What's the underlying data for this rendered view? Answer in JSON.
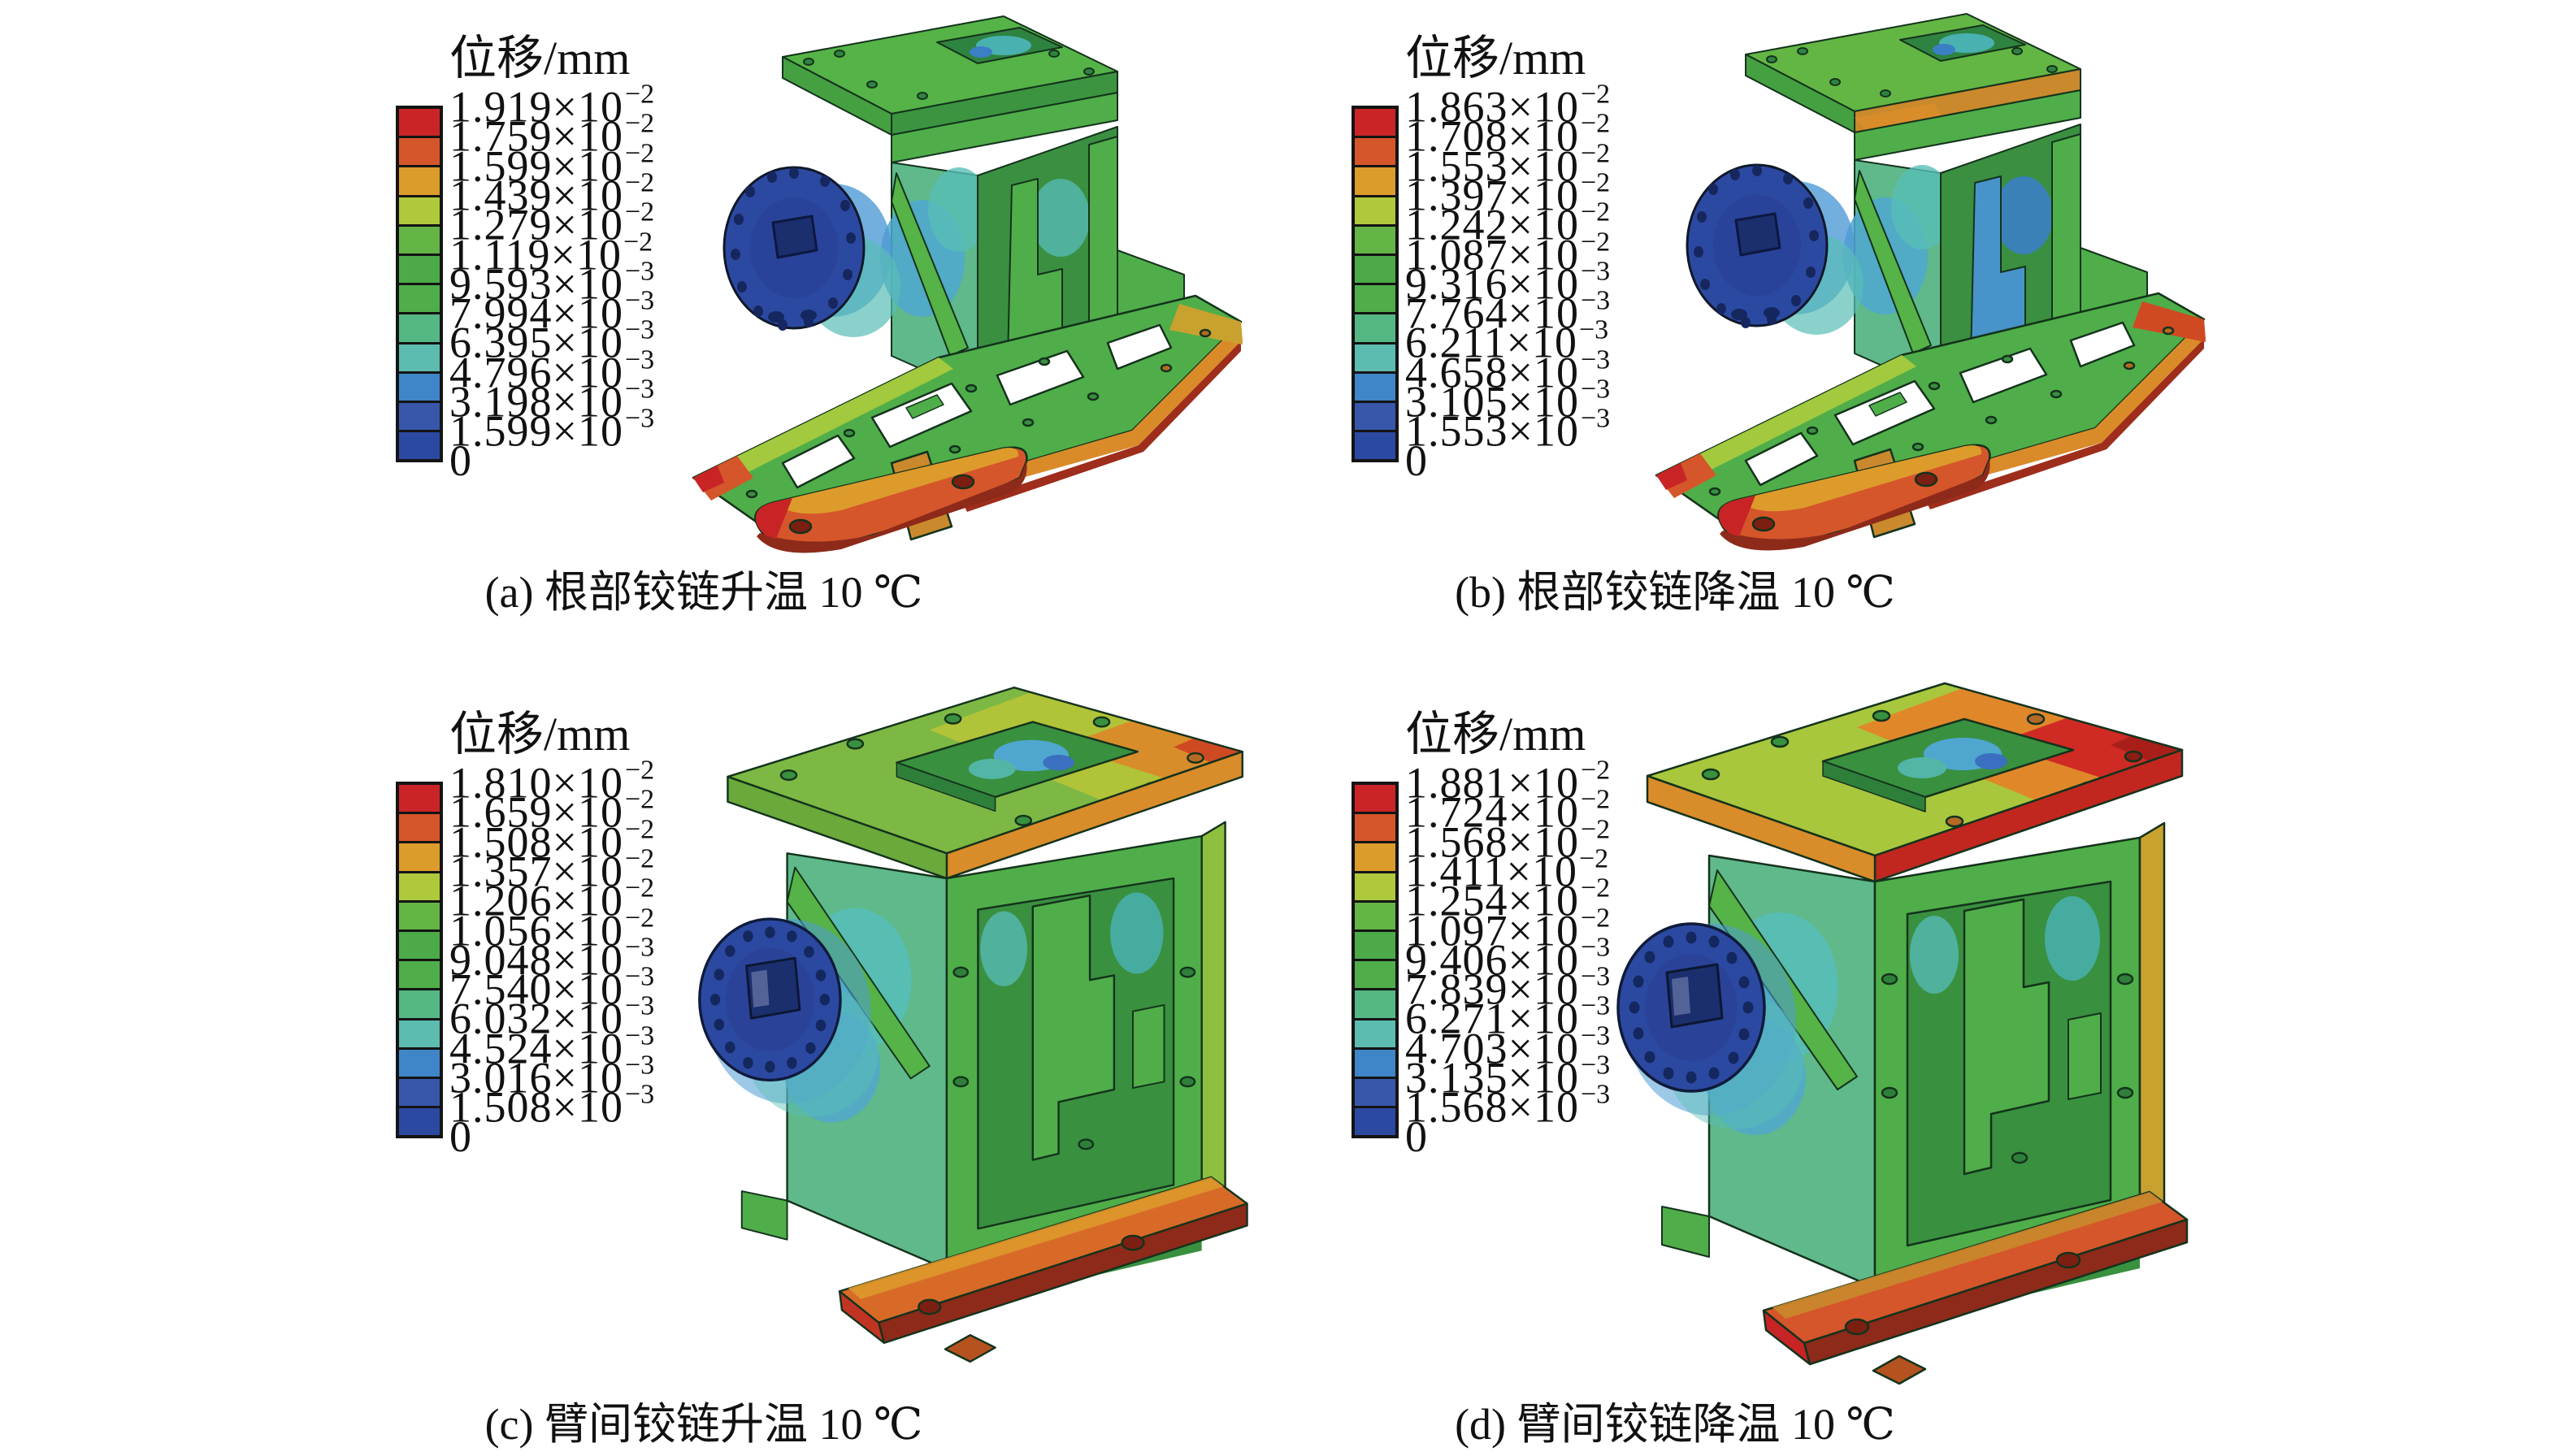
{
  "colorbar": {
    "exp_notation": "×10",
    "colors": [
      "#cb2427",
      "#d5562a",
      "#dc9c2b",
      "#aeca3c",
      "#64b446",
      "#4cab48",
      "#4fae4a",
      "#55b784",
      "#5cbcb0",
      "#3e86c8",
      "#3857ab",
      "#2c49a2"
    ]
  },
  "panels": [
    {
      "id": "a",
      "legend_title": "位移/mm",
      "caption": "(a) 根部铰链升温 10 ℃",
      "ticks": [
        {
          "m": "1.919",
          "e": "−2"
        },
        {
          "m": "1.759",
          "e": "−2"
        },
        {
          "m": "1.599",
          "e": "−2"
        },
        {
          "m": "1.439",
          "e": "−2"
        },
        {
          "m": "1.279",
          "e": "−2"
        },
        {
          "m": "1.119",
          "e": "−2"
        },
        {
          "m": "9.593",
          "e": "−3"
        },
        {
          "m": "7.994",
          "e": "−3"
        },
        {
          "m": "6.395",
          "e": "−3"
        },
        {
          "m": "4.796",
          "e": "−3"
        },
        {
          "m": "3.198",
          "e": "−3"
        },
        {
          "m": "1.599",
          "e": "−3"
        },
        {
          "m": "0",
          "e": ""
        }
      ]
    },
    {
      "id": "b",
      "legend_title": "位移/mm",
      "caption": "(b) 根部铰链降温 10 ℃",
      "ticks": [
        {
          "m": "1.863",
          "e": "−2"
        },
        {
          "m": "1.708",
          "e": "−2"
        },
        {
          "m": "1.553",
          "e": "−2"
        },
        {
          "m": "1.397",
          "e": "−2"
        },
        {
          "m": "1.242",
          "e": "−2"
        },
        {
          "m": "1.087",
          "e": "−2"
        },
        {
          "m": "9.316",
          "e": "−3"
        },
        {
          "m": "7.764",
          "e": "−3"
        },
        {
          "m": "6.211",
          "e": "−3"
        },
        {
          "m": "4.658",
          "e": "−3"
        },
        {
          "m": "3.105",
          "e": "−3"
        },
        {
          "m": "1.553",
          "e": "−3"
        },
        {
          "m": "0",
          "e": ""
        }
      ]
    },
    {
      "id": "c",
      "legend_title": "位移/mm",
      "caption": "(c) 臂间铰链升温 10 ℃",
      "ticks": [
        {
          "m": "1.810",
          "e": "−2"
        },
        {
          "m": "1.659",
          "e": "−2"
        },
        {
          "m": "1.508",
          "e": "−2"
        },
        {
          "m": "1.357",
          "e": "−2"
        },
        {
          "m": "1.206",
          "e": "−2"
        },
        {
          "m": "1.056",
          "e": "−2"
        },
        {
          "m": "9.048",
          "e": "−3"
        },
        {
          "m": "7.540",
          "e": "−3"
        },
        {
          "m": "6.032",
          "e": "−3"
        },
        {
          "m": "4.524",
          "e": "−3"
        },
        {
          "m": "3.016",
          "e": "−3"
        },
        {
          "m": "1.508",
          "e": "−3"
        },
        {
          "m": "0",
          "e": ""
        }
      ]
    },
    {
      "id": "d",
      "legend_title": "位移/mm",
      "caption": "(d) 臂间铰链降温 10 ℃",
      "ticks": [
        {
          "m": "1.881",
          "e": "−2"
        },
        {
          "m": "1.724",
          "e": "−2"
        },
        {
          "m": "1.568",
          "e": "−2"
        },
        {
          "m": "1.411",
          "e": "−2"
        },
        {
          "m": "1.254",
          "e": "−2"
        },
        {
          "m": "1.097",
          "e": "−2"
        },
        {
          "m": "9.406",
          "e": "−3"
        },
        {
          "m": "7.839",
          "e": "−3"
        },
        {
          "m": "6.271",
          "e": "−3"
        },
        {
          "m": "4.703",
          "e": "−3"
        },
        {
          "m": "3.135",
          "e": "−3"
        },
        {
          "m": "1.568",
          "e": "−3"
        },
        {
          "m": "0",
          "e": ""
        }
      ]
    }
  ],
  "chart_data": [
    {
      "type": "heatmap",
      "subtype": "FEA displacement contour (3D hinge model)",
      "panel": "a",
      "title": "(a) 根部铰链升温 10 ℃",
      "colorbar_title": "位移/mm",
      "units": "mm",
      "legend_position": "left",
      "colorbar_ticks_mm": [
        0.01919,
        0.01759,
        0.01599,
        0.01439,
        0.01279,
        0.01119,
        0.009593,
        0.007994,
        0.006395,
        0.004796,
        0.003198,
        0.001599,
        0
      ]
    },
    {
      "type": "heatmap",
      "subtype": "FEA displacement contour (3D hinge model)",
      "panel": "b",
      "title": "(b) 根部铰链降温 10 ℃",
      "colorbar_title": "位移/mm",
      "units": "mm",
      "legend_position": "left",
      "colorbar_ticks_mm": [
        0.01863,
        0.01708,
        0.01553,
        0.01397,
        0.01242,
        0.01087,
        0.009316,
        0.007764,
        0.006211,
        0.004658,
        0.003105,
        0.001553,
        0
      ]
    },
    {
      "type": "heatmap",
      "subtype": "FEA displacement contour (3D hinge model)",
      "panel": "c",
      "title": "(c) 臂间铰链升温 10 ℃",
      "colorbar_title": "位移/mm",
      "units": "mm",
      "legend_position": "left",
      "colorbar_ticks_mm": [
        0.0181,
        0.01659,
        0.01508,
        0.01357,
        0.01206,
        0.01056,
        0.009048,
        0.00754,
        0.006032,
        0.004524,
        0.003016,
        0.001508,
        0
      ]
    },
    {
      "type": "heatmap",
      "subtype": "FEA displacement contour (3D hinge model)",
      "panel": "d",
      "title": "(d) 臂间铰链降温 10 ℃",
      "colorbar_title": "位移/mm",
      "units": "mm",
      "legend_position": "left",
      "colorbar_ticks_mm": [
        0.01881,
        0.01724,
        0.01568,
        0.01411,
        0.01254,
        0.01097,
        0.009406,
        0.007839,
        0.006271,
        0.004703,
        0.003135,
        0.001568,
        0
      ]
    }
  ]
}
